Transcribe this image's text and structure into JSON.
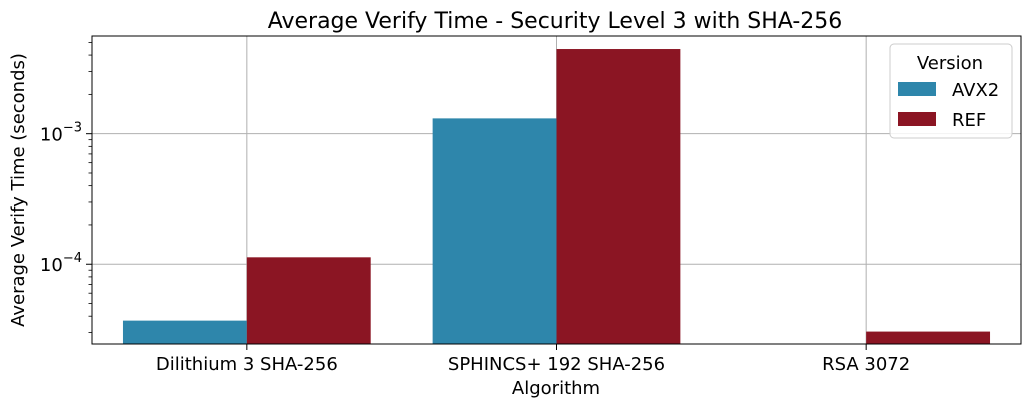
{
  "chart_data": {
    "type": "bar",
    "title": "Average Verify Time - Security Level 3 with SHA-256",
    "xlabel": "Algorithm",
    "ylabel": "Average Verify Time (seconds)",
    "yscale": "log",
    "ylim": [
      2.45e-05,
      0.0056
    ],
    "categories": [
      "Dilithium 3 SHA-256",
      "SPHINCS+ 192 SHA-256",
      "RSA 3072"
    ],
    "series": [
      {
        "name": "AVX2",
        "color": "#2E86AB",
        "values": [
          3.7e-05,
          0.00131,
          null
        ]
      },
      {
        "name": "REF",
        "color": "#8B1523",
        "values": [
          0.000113,
          0.00445,
          3.05e-05
        ]
      }
    ],
    "yticks": [
      {
        "value": 0.0001,
        "base": "10",
        "exp": "−4"
      },
      {
        "value": 0.001,
        "base": "10",
        "exp": "−3"
      }
    ],
    "grid": true,
    "legend": {
      "title": "Version",
      "placement": "top-right"
    }
  }
}
